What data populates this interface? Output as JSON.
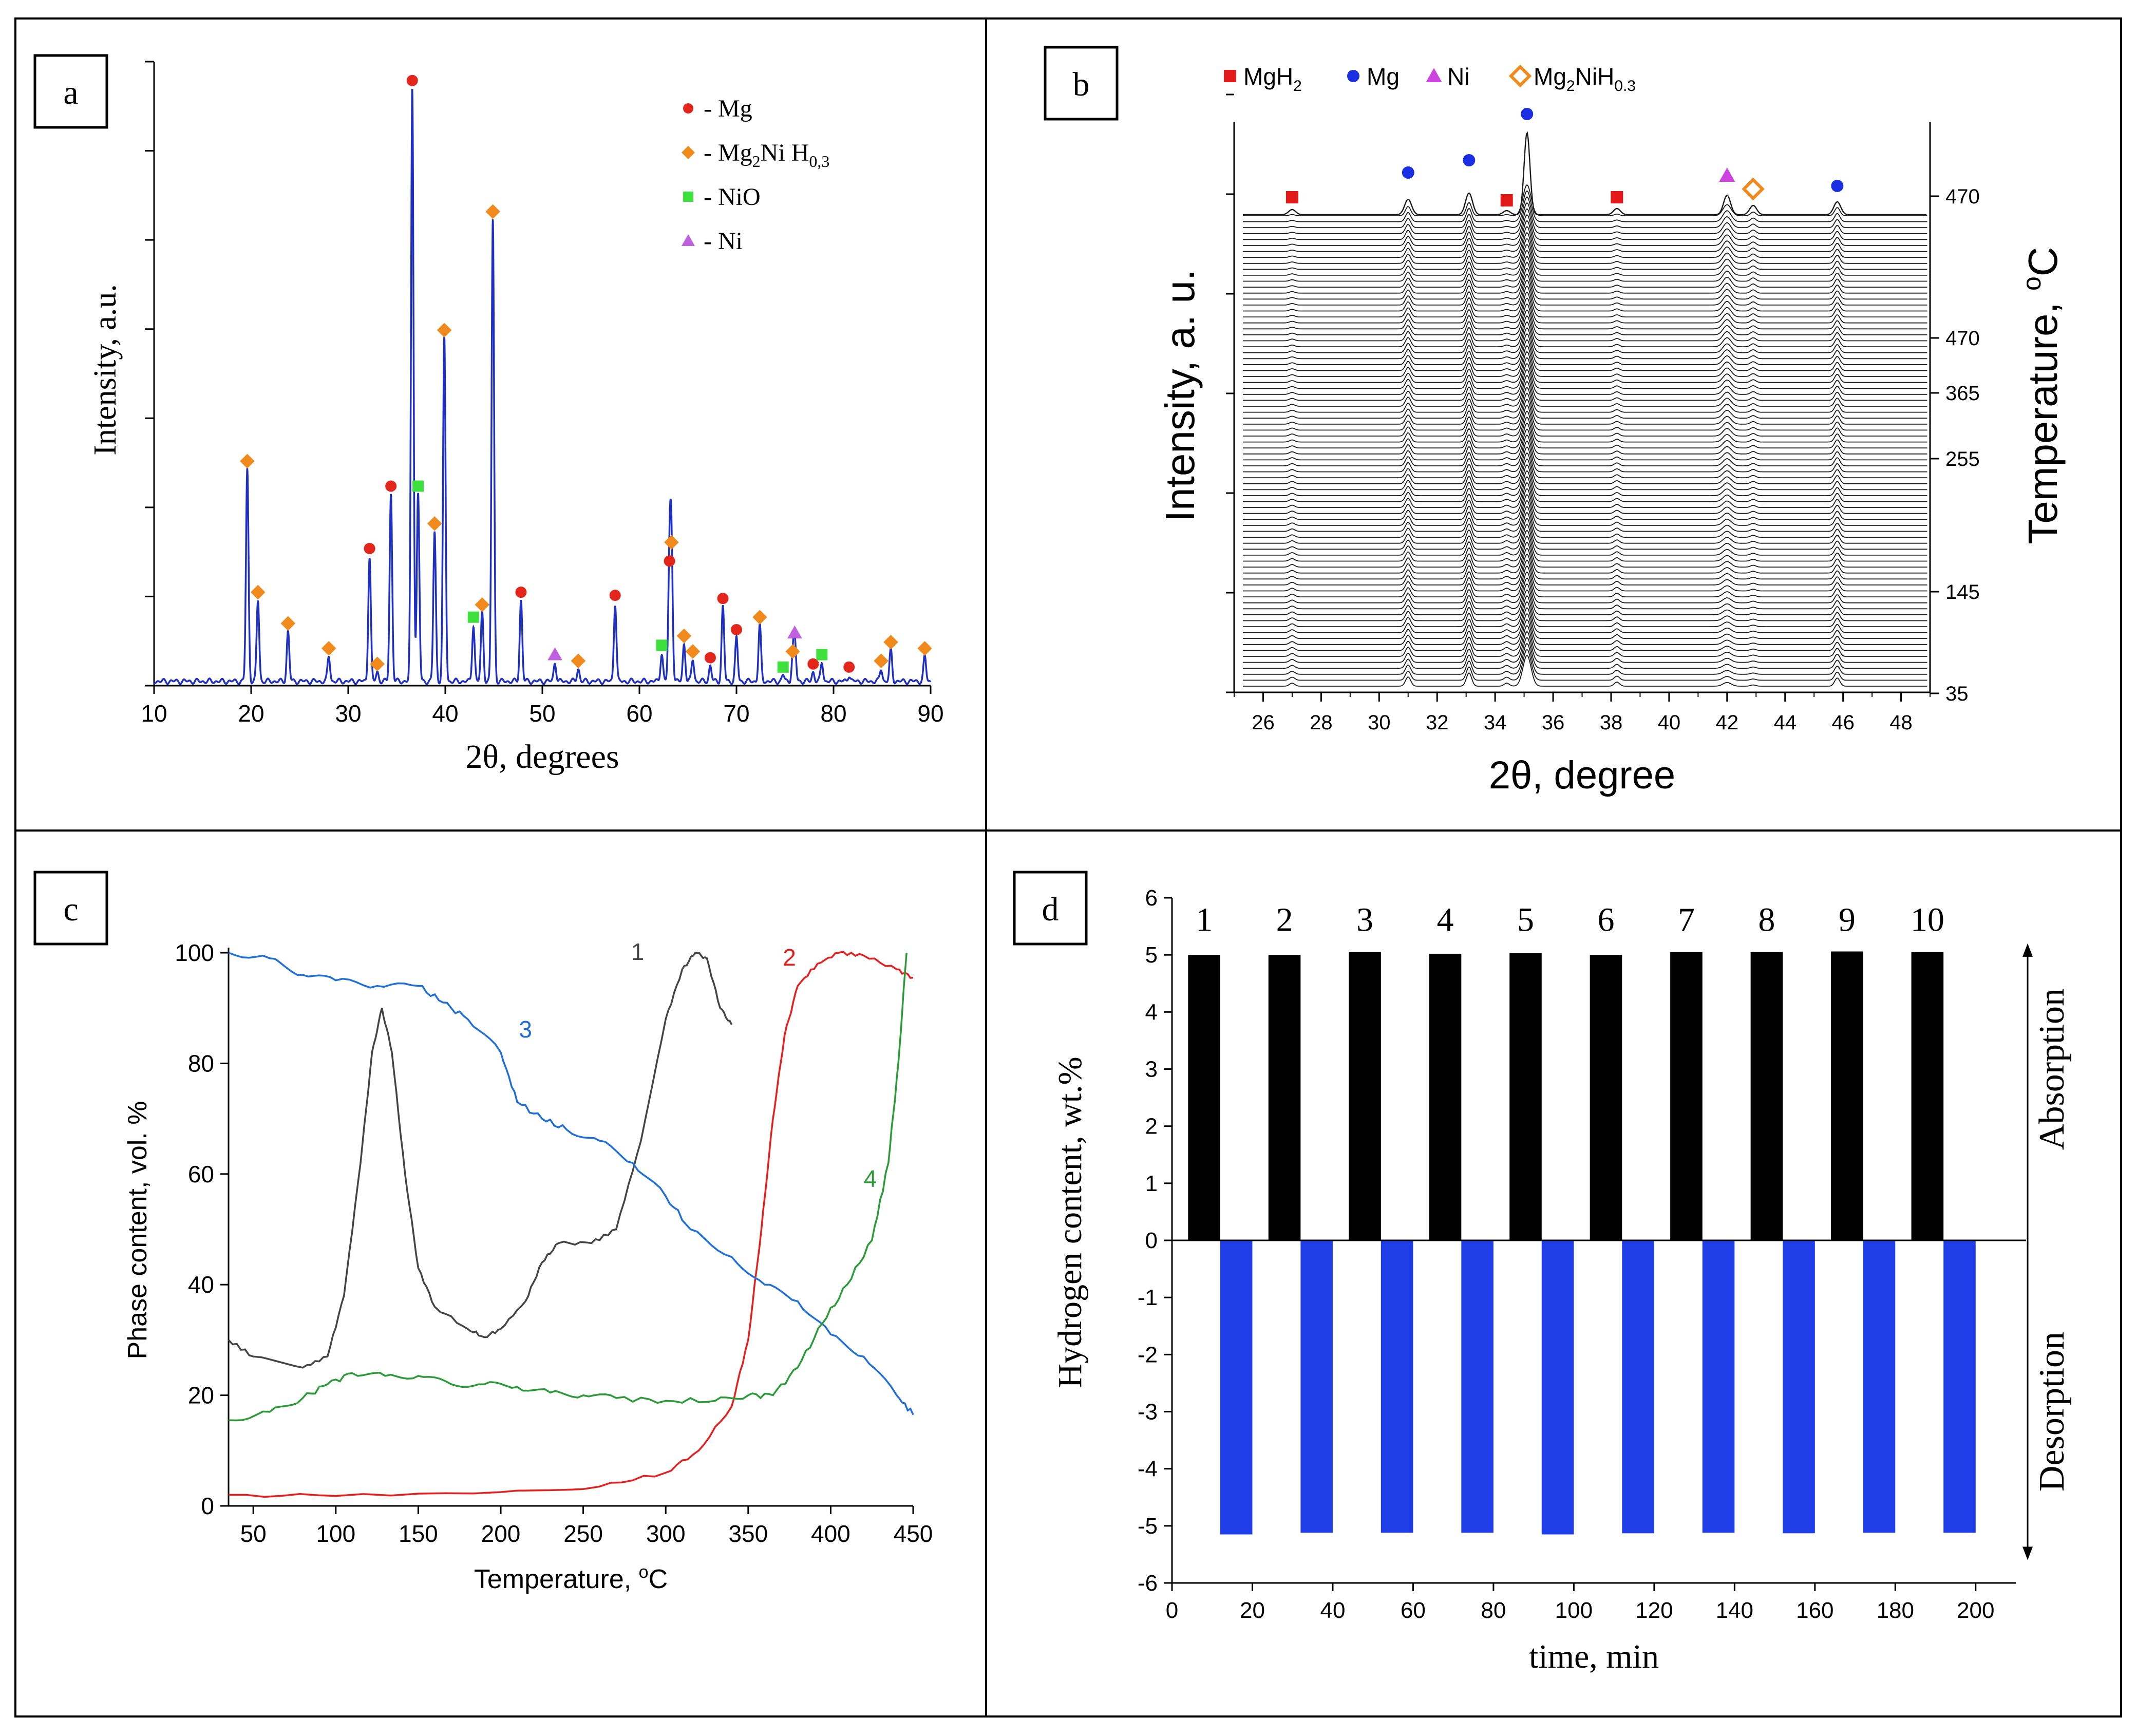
{
  "figure": {
    "panel_letters": [
      "a",
      "b",
      "c",
      "d"
    ]
  },
  "chart_data": [
    {
      "panel": "a",
      "type": "line",
      "xlabel": "2θ, degrees",
      "ylabel": "Intensity, a.u.",
      "xlim": [
        10,
        90
      ],
      "ylim": [
        0,
        100
      ],
      "xticks": [
        10,
        20,
        30,
        40,
        50,
        60,
        70,
        80,
        90
      ],
      "series": [
        {
          "name": "XRD pattern",
          "color": "#1f2fbf"
        }
      ],
      "peaks": [
        {
          "x": 19.6,
          "h": 34,
          "phase": "Mg2NiH0.3"
        },
        {
          "x": 20.7,
          "h": 13,
          "phase": "Mg2NiH0.3"
        },
        {
          "x": 23.8,
          "h": 8,
          "phase": "Mg2NiH0.3"
        },
        {
          "x": 28.0,
          "h": 4,
          "phase": "Mg2NiH0.3"
        },
        {
          "x": 32.2,
          "h": 20,
          "phase": "Mg"
        },
        {
          "x": 33.0,
          "h": 1.5,
          "phase": "Mg2NiH0.3"
        },
        {
          "x": 34.4,
          "h": 30,
          "phase": "Mg"
        },
        {
          "x": 36.6,
          "h": 95,
          "phase": "Mg"
        },
        {
          "x": 37.2,
          "h": 30,
          "phase": "NiO"
        },
        {
          "x": 38.9,
          "h": 24,
          "phase": "Mg2NiH0.3"
        },
        {
          "x": 39.9,
          "h": 55,
          "phase": "Mg2NiH0.3"
        },
        {
          "x": 42.9,
          "h": 9,
          "phase": "NiO"
        },
        {
          "x": 43.8,
          "h": 11,
          "phase": "Mg2NiH0.3"
        },
        {
          "x": 44.9,
          "h": 74,
          "phase": "Mg2NiH0.3"
        },
        {
          "x": 47.8,
          "h": 13,
          "phase": "Mg"
        },
        {
          "x": 51.3,
          "h": 3,
          "phase": "Ni"
        },
        {
          "x": 53.7,
          "h": 2,
          "phase": "Mg2NiH0.3"
        },
        {
          "x": 57.5,
          "h": 12.5,
          "phase": "Mg"
        },
        {
          "x": 62.3,
          "h": 4.5,
          "phase": "NiO"
        },
        {
          "x": 63.1,
          "h": 18,
          "phase": "Mg"
        },
        {
          "x": 63.3,
          "h": 21,
          "phase": "Mg2NiH0.3"
        },
        {
          "x": 64.6,
          "h": 6,
          "phase": "Mg2NiH0.3"
        },
        {
          "x": 65.5,
          "h": 3.5,
          "phase": "Mg2NiH0.3"
        },
        {
          "x": 67.3,
          "h": 2.5,
          "phase": "Mg"
        },
        {
          "x": 68.6,
          "h": 12,
          "phase": "Mg"
        },
        {
          "x": 70.0,
          "h": 7,
          "phase": "Mg"
        },
        {
          "x": 72.4,
          "h": 9,
          "phase": "Mg2NiH0.3"
        },
        {
          "x": 74.8,
          "h": 1,
          "phase": "NiO"
        },
        {
          "x": 75.8,
          "h": 3.5,
          "phase": "Mg2NiH0.3"
        },
        {
          "x": 76.0,
          "h": 6.5,
          "phase": "Ni"
        },
        {
          "x": 77.9,
          "h": 1.5,
          "phase": "Mg"
        },
        {
          "x": 78.8,
          "h": 3,
          "phase": "NiO"
        },
        {
          "x": 81.6,
          "h": 1,
          "phase": "Mg"
        },
        {
          "x": 84.9,
          "h": 2,
          "phase": "Mg2NiH0.3"
        },
        {
          "x": 85.9,
          "h": 5,
          "phase": "Mg2NiH0.3"
        },
        {
          "x": 89.4,
          "h": 4,
          "phase": "Mg2NiH0.3"
        }
      ],
      "legend": [
        {
          "label": "- Mg",
          "marker": "circle",
          "color": "#e3261b"
        },
        {
          "label": "- Mg2NiH0,3",
          "base": "- Mg",
          "sub": "2",
          "mid": "Ni H",
          "sub2": "0,3",
          "marker": "diamond",
          "color": "#f08a1c"
        },
        {
          "label": "- NiO",
          "marker": "square",
          "color": "#3ee03e"
        },
        {
          "label": "- Ni",
          "marker": "triangle",
          "color": "#c060e0"
        }
      ]
    },
    {
      "panel": "b",
      "type": "line",
      "xlabel": "2θ, degree",
      "ylabel": "Intensity, a. u.",
      "ylabel_right": "Temperature, ºC",
      "ylabel_right_main": "Temperature, ",
      "ylabel_right_sup": "o",
      "ylabel_right_end": "C",
      "xlim": [
        25,
        49
      ],
      "xticks": [
        26,
        28,
        30,
        32,
        34,
        36,
        38,
        40,
        42,
        44,
        46,
        48
      ],
      "temperature_ticks": [
        "470",
        "470",
        "365",
        "255",
        "145",
        "35"
      ],
      "n_traces": 80,
      "peak_positions": [
        27.0,
        31.0,
        33.1,
        34.4,
        35.1,
        38.2,
        42.0,
        42.9,
        45.8
      ],
      "legend": [
        {
          "label": "MgH2",
          "text": "MgH",
          "sub": "2",
          "marker": "square",
          "color": "#e31a1a"
        },
        {
          "label": "Mg",
          "text": "Mg",
          "marker": "circle",
          "color": "#1a2ee3"
        },
        {
          "label": "Ni",
          "text": "Ni",
          "marker": "triangle",
          "color": "#cc44dd"
        },
        {
          "label": "Mg2NiH0.3",
          "text": "Mg",
          "sub": "2",
          "mid": "NiH",
          "sub2": "0.3",
          "marker": "diamond-open",
          "color": "#f08a1c"
        }
      ],
      "markers": [
        {
          "x": 27.0,
          "phase": "MgH2"
        },
        {
          "x": 31.0,
          "phase": "Mg"
        },
        {
          "x": 33.1,
          "phase": "Mg"
        },
        {
          "x": 34.4,
          "phase": "MgH2"
        },
        {
          "x": 35.1,
          "phase": "Mg"
        },
        {
          "x": 38.2,
          "phase": "MgH2"
        },
        {
          "x": 42.0,
          "phase": "Ni"
        },
        {
          "x": 42.9,
          "phase": "Mg2NiH0.3"
        },
        {
          "x": 45.8,
          "phase": "Mg"
        }
      ]
    },
    {
      "panel": "c",
      "type": "line",
      "xlabel": "Temperature, ºC",
      "xlabel_main": "Temperature, ",
      "xlabel_sup": "o",
      "xlabel_end": "C",
      "ylabel": "Phase content, vol. %",
      "xlim": [
        35,
        450
      ],
      "ylim": [
        0,
        100
      ],
      "xticks": [
        50,
        100,
        150,
        200,
        250,
        300,
        350,
        400,
        450
      ],
      "yticks": [
        0,
        20,
        40,
        60,
        80,
        100
      ],
      "series": [
        {
          "name": "1",
          "color": "#444444",
          "points": [
            [
              35,
              30
            ],
            [
              50,
              27
            ],
            [
              80,
              25
            ],
            [
              95,
              27
            ],
            [
              105,
              38
            ],
            [
              115,
              62
            ],
            [
              122,
              82
            ],
            [
              128,
              90
            ],
            [
              134,
              82
            ],
            [
              142,
              60
            ],
            [
              150,
              43
            ],
            [
              160,
              36
            ],
            [
              180,
              32
            ],
            [
              190,
              30.5
            ],
            [
              200,
              32
            ],
            [
              215,
              37
            ],
            [
              225,
              44
            ],
            [
              235,
              47.5
            ],
            [
              255,
              47.5
            ],
            [
              270,
              50
            ],
            [
              285,
              66
            ],
            [
              300,
              88
            ],
            [
              310,
              97
            ],
            [
              318,
              100
            ],
            [
              325,
              99
            ],
            [
              333,
              90
            ],
            [
              340,
              87
            ]
          ]
        },
        {
          "name": "2",
          "color": "#e32020",
          "points": [
            [
              35,
              2
            ],
            [
              100,
              1.8
            ],
            [
              200,
              2.5
            ],
            [
              260,
              3.5
            ],
            [
              300,
              6
            ],
            [
              320,
              10
            ],
            [
              340,
              18
            ],
            [
              350,
              30
            ],
            [
              358,
              50
            ],
            [
              365,
              70
            ],
            [
              372,
              85
            ],
            [
              380,
              94
            ],
            [
              392,
              98
            ],
            [
              405,
              100
            ],
            [
              420,
              99.5
            ],
            [
              440,
              97
            ],
            [
              450,
              95.5
            ]
          ]
        },
        {
          "name": "3",
          "color": "#1f6fd6",
          "points": [
            [
              35,
              100
            ],
            [
              60,
              99
            ],
            [
              80,
              96
            ],
            [
              100,
              95
            ],
            [
              125,
              94
            ],
            [
              150,
              94
            ],
            [
              165,
              91
            ],
            [
              180,
              88
            ],
            [
              200,
              82
            ],
            [
              210,
              73
            ],
            [
              225,
              70
            ],
            [
              240,
              68
            ],
            [
              260,
              66
            ],
            [
              280,
              62
            ],
            [
              300,
              56
            ],
            [
              315,
              50
            ],
            [
              340,
              45
            ],
            [
              360,
              40
            ],
            [
              380,
              37
            ],
            [
              400,
              31
            ],
            [
              420,
              27
            ],
            [
              440,
              20
            ],
            [
              450,
              16.5
            ]
          ]
        },
        {
          "name": "4",
          "color": "#2d9a3a",
          "points": [
            [
              35,
              15.5
            ],
            [
              60,
              17
            ],
            [
              80,
              19.5
            ],
            [
              95,
              22
            ],
            [
              110,
              24
            ],
            [
              130,
              23.5
            ],
            [
              150,
              23.5
            ],
            [
              170,
              22
            ],
            [
              190,
              22
            ],
            [
              210,
              21.5
            ],
            [
              230,
              20.5
            ],
            [
              250,
              20
            ],
            [
              270,
              19.5
            ],
            [
              300,
              19
            ],
            [
              330,
              19
            ],
            [
              350,
              20
            ],
            [
              365,
              20
            ],
            [
              380,
              25
            ],
            [
              395,
              33
            ],
            [
              410,
              40
            ],
            [
              425,
              48
            ],
            [
              435,
              62
            ],
            [
              441,
              80
            ],
            [
              446,
              100
            ]
          ]
        }
      ],
      "series_labels": [
        {
          "name": "1",
          "at": [
            283,
            100
          ]
        },
        {
          "name": "2",
          "at": [
            375,
            99
          ]
        },
        {
          "name": "3",
          "at": [
            215,
            86
          ]
        },
        {
          "name": "4",
          "at": [
            424,
            59
          ]
        }
      ]
    },
    {
      "panel": "d",
      "type": "bar",
      "xlabel": "time, min",
      "ylabel": "Hydrogen content, wt.%",
      "xlim": [
        0,
        210
      ],
      "ylim": [
        -6,
        6
      ],
      "xticks": [
        0,
        20,
        40,
        60,
        80,
        100,
        120,
        140,
        160,
        180,
        200
      ],
      "yticks": [
        -6,
        -5,
        -4,
        -3,
        -2,
        -1,
        0,
        1,
        2,
        3,
        4,
        5,
        6
      ],
      "cycle_labels": [
        "1",
        "2",
        "3",
        "4",
        "5",
        "6",
        "7",
        "8",
        "9",
        "10"
      ],
      "absorption": {
        "color": "#000000",
        "starts": [
          4,
          24,
          44,
          64,
          84,
          104,
          124,
          144,
          164,
          184
        ],
        "ends": [
          12,
          32,
          52,
          72,
          92,
          112,
          132,
          152,
          172,
          192
        ],
        "values": [
          5.0,
          5.0,
          5.05,
          5.02,
          5.03,
          5.0,
          5.05,
          5.05,
          5.06,
          5.05
        ]
      },
      "desorption": {
        "color": "#1f3ee8",
        "starts": [
          12,
          32,
          52,
          72,
          92,
          112,
          132,
          152,
          172,
          192
        ],
        "ends": [
          20,
          40,
          60,
          80,
          100,
          120,
          140,
          160,
          180,
          200
        ],
        "values": [
          -5.15,
          -5.12,
          -5.12,
          -5.12,
          -5.15,
          -5.13,
          -5.12,
          -5.13,
          -5.12,
          -5.12
        ]
      },
      "side_labels": {
        "absorption": "Absorption",
        "desorption": "Desorption"
      }
    }
  ]
}
